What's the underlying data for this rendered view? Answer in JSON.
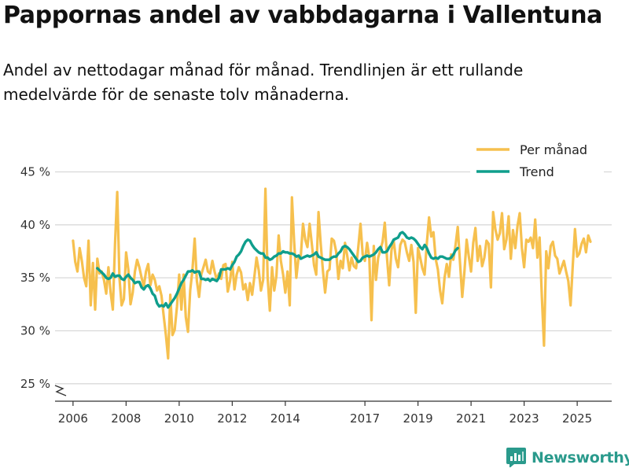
{
  "header": {
    "title": "Pappornas andel av vabbdagarna i Vallentuna",
    "subtitle": "Andel av nettodagar månad för månad. Trendlinjen är ett rullande medelvärde för de senaste tolv månaderna."
  },
  "brand": {
    "name": "Newsworthy",
    "icon": "newsworthy-logo-icon"
  },
  "colors": {
    "monthly": "#f6c04e",
    "trend": "#0f9e8c",
    "grid": "#d9d9d9",
    "axis": "#333333",
    "brand": "#2a9a8c"
  },
  "chart_data": {
    "type": "line",
    "title": "Pappornas andel av vabbdagarna i Vallentuna",
    "xlabel": "",
    "ylabel": "",
    "ylim": [
      23.5,
      46
    ],
    "xlim": [
      2005.5,
      2026.3
    ],
    "x_ticks": [
      2006,
      2008,
      2010,
      2012,
      2014,
      2017,
      2019,
      2021,
      2023,
      2025
    ],
    "y_ticks": [
      25,
      30,
      35,
      40,
      45
    ],
    "y_tick_labels": [
      "25 %",
      "30 %",
      "35 %",
      "40 %",
      "45 %"
    ],
    "axis_break": true,
    "legend": {
      "position": "top-right",
      "entries": [
        "Per månad",
        "Trend"
      ]
    },
    "series": [
      {
        "name": "Per månad",
        "x_start": 2006.0,
        "step": 0.08333,
        "values": [
          38.5,
          36.5,
          35.6,
          37.8,
          36.6,
          35.0,
          34.2,
          38.5,
          32.4,
          36.4,
          32.0,
          36.8,
          35.4,
          35.6,
          34.8,
          33.5,
          36.0,
          33.6,
          32.0,
          38.2,
          43.1,
          35.0,
          32.4,
          33.0,
          37.4,
          35.8,
          32.5,
          33.6,
          35.6,
          36.7,
          36.0,
          35.0,
          34.2,
          35.6,
          36.3,
          34.3,
          35.3,
          34.8,
          33.8,
          34.2,
          33.3,
          31.4,
          29.6,
          27.4,
          33.4,
          29.6,
          30.1,
          32.3,
          35.3,
          32.0,
          35.3,
          31.3,
          29.9,
          33.8,
          35.7,
          38.7,
          34.7,
          33.2,
          35.3,
          36.0,
          36.7,
          35.6,
          35.4,
          36.6,
          35.6,
          34.8,
          35.4,
          34.9,
          36.2,
          36.3,
          33.7,
          34.7,
          36.5,
          33.9,
          35.3,
          36.0,
          35.5,
          33.9,
          34.4,
          32.9,
          34.5,
          33.4,
          35.1,
          36.9,
          35.7,
          33.8,
          34.8,
          43.4,
          35.0,
          31.9,
          36.0,
          33.8,
          35.2,
          39.0,
          36.6,
          35.3,
          33.6,
          35.6,
          32.4,
          42.6,
          38.4,
          35.0,
          36.9,
          37.1,
          40.1,
          38.6,
          37.9,
          40.1,
          38.2,
          36.2,
          35.3,
          41.2,
          38.2,
          35.7,
          33.6,
          35.6,
          35.8,
          38.7,
          38.5,
          37.5,
          34.9,
          36.6,
          35.9,
          38.3,
          37.1,
          35.7,
          36.9,
          36.1,
          35.9,
          37.9,
          40.1,
          37.2,
          36.6,
          38.3,
          36.9,
          31.0,
          38.0,
          34.8,
          36.9,
          37.6,
          38.4,
          40.2,
          36.9,
          34.3,
          37.6,
          38.5,
          36.8,
          36.0,
          38.1,
          38.6,
          38.4,
          37.4,
          36.6,
          38.1,
          36.5,
          31.7,
          37.8,
          36.9,
          35.9,
          35.3,
          38.3,
          40.7,
          38.9,
          39.3,
          36.8,
          35.8,
          33.8,
          32.6,
          35.0,
          36.3,
          35.1,
          37.2,
          36.7,
          38.1,
          39.8,
          36.5,
          33.2,
          35.6,
          38.6,
          37.0,
          35.6,
          38.3,
          39.7,
          36.6,
          38.0,
          36.1,
          36.9,
          38.5,
          38.2,
          34.1,
          41.2,
          39.6,
          38.6,
          39.2,
          41.1,
          37.7,
          38.6,
          40.8,
          36.8,
          39.5,
          37.8,
          39.9,
          41.1,
          37.8,
          36.0,
          38.6,
          38.4,
          38.8,
          37.8,
          40.5,
          36.9,
          38.8,
          33.3,
          28.6,
          37.5,
          35.9,
          38.0,
          38.4,
          37.1,
          36.8,
          35.4,
          36.0,
          36.6,
          35.6,
          34.7,
          32.4,
          36.2,
          39.6,
          37.0,
          37.3,
          38.2,
          38.7,
          37.4,
          39.0,
          38.4
        ]
      },
      {
        "name": "Trend",
        "x_start": 2006.917,
        "step": 0.08333,
        "values": [
          35.9,
          35.7,
          35.5,
          35.3,
          35.0,
          34.9,
          35.0,
          35.4,
          35.1,
          35.2,
          35.2,
          34.9,
          34.8,
          35.1,
          35.3,
          35.0,
          34.8,
          34.5,
          34.6,
          34.6,
          34.1,
          33.9,
          34.2,
          34.3,
          34.0,
          33.5,
          33.3,
          32.6,
          32.3,
          32.4,
          32.3,
          32.6,
          32.2,
          32.5,
          32.8,
          33.1,
          33.5,
          34.0,
          34.5,
          34.8,
          35.2,
          35.6,
          35.6,
          35.7,
          35.5,
          35.6,
          35.6,
          34.9,
          34.9,
          34.8,
          34.9,
          34.7,
          34.9,
          34.8,
          34.7,
          35.0,
          35.8,
          35.8,
          35.8,
          35.9,
          35.8,
          36.2,
          36.5,
          37.0,
          37.2,
          37.5,
          38.0,
          38.4,
          38.6,
          38.5,
          38.1,
          37.8,
          37.6,
          37.4,
          37.3,
          37.3,
          36.9,
          36.9,
          36.7,
          36.8,
          37.0,
          37.1,
          37.3,
          37.3,
          37.5,
          37.4,
          37.4,
          37.3,
          37.3,
          37.2,
          37.0,
          37.1,
          36.8,
          36.9,
          37.0,
          37.1,
          37.0,
          37.1,
          37.2,
          37.4,
          37.0,
          36.9,
          36.8,
          36.7,
          36.7,
          36.7,
          36.9,
          37.0,
          37.0,
          37.3,
          37.5,
          37.9,
          38.0,
          37.9,
          37.7,
          37.4,
          37.1,
          36.8,
          36.5,
          36.6,
          36.9,
          37.0,
          37.1,
          37.0,
          37.1,
          37.2,
          37.4,
          37.7,
          37.9,
          37.4,
          37.4,
          37.5,
          37.9,
          38.2,
          38.6,
          38.7,
          38.8,
          39.2,
          39.3,
          39.1,
          38.8,
          38.7,
          38.8,
          38.7,
          38.5,
          38.2,
          37.9,
          37.7,
          38.1,
          37.8,
          37.3,
          36.9,
          36.8,
          36.9,
          36.8,
          37.0,
          37.0,
          36.9,
          36.8,
          36.8,
          36.9,
          37.2,
          37.6,
          37.8
        ]
      }
    ]
  }
}
